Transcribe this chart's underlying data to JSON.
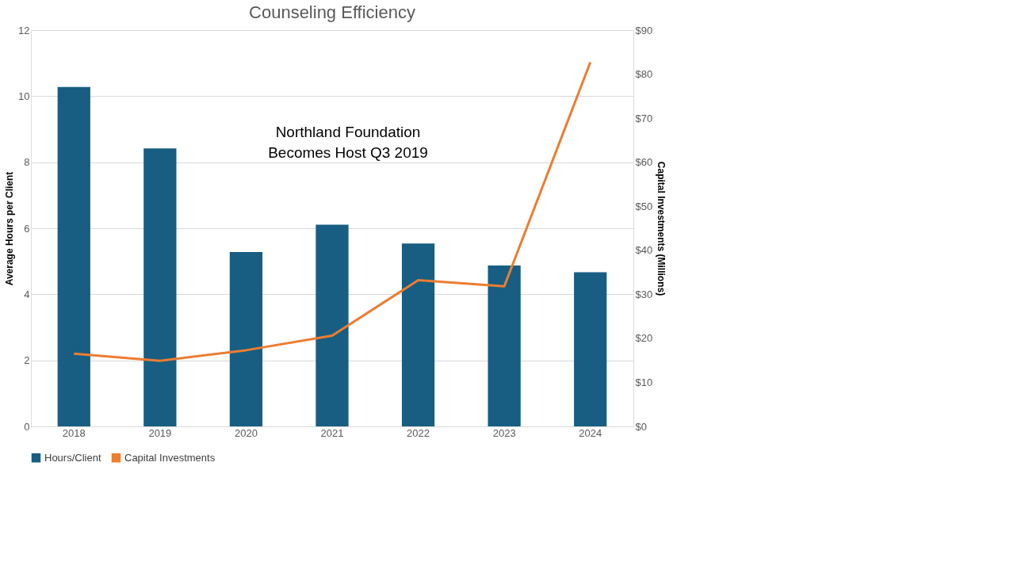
{
  "chart_data": {
    "type": "bar",
    "title": "Counseling Efficiency",
    "categories": [
      "2018",
      "2019",
      "2020",
      "2021",
      "2022",
      "2023",
      "2024"
    ],
    "series": [
      {
        "name": "Hours/Client",
        "color": "#175e82",
        "values": [
          10.28,
          8.42,
          5.28,
          6.11,
          5.54,
          4.87,
          4.67
        ]
      },
      {
        "name": "Capital Investments",
        "type": "line",
        "axis": "y2",
        "color": "#ed7d31",
        "values": [
          16.5,
          14.9,
          17.3,
          20.6,
          33.2,
          31.8,
          82.7
        ]
      }
    ],
    "ylabel": "Average Hours per Client",
    "y2label": "Capital Investments (Millions)",
    "ylim": [
      0,
      12
    ],
    "yticks": [
      0,
      2,
      4,
      6,
      8,
      10,
      12
    ],
    "y2lim": [
      0,
      90
    ],
    "y2ticks": [
      {
        "value": 0,
        "label": "$0"
      },
      {
        "value": 10,
        "label": "$10"
      },
      {
        "value": 20,
        "label": "$20"
      },
      {
        "value": 30,
        "label": "$30"
      },
      {
        "value": 40,
        "label": "$40"
      },
      {
        "value": 50,
        "label": "$50"
      },
      {
        "value": 60,
        "label": "$60"
      },
      {
        "value": 70,
        "label": "$70"
      },
      {
        "value": 80,
        "label": "$80"
      },
      {
        "value": 90,
        "label": "$90"
      }
    ],
    "annotations": [
      "Northland Foundation\nBecomes Host Q3 2019"
    ],
    "grid": "y",
    "legend": "bottom",
    "line_style": "solid",
    "marker": "none"
  }
}
